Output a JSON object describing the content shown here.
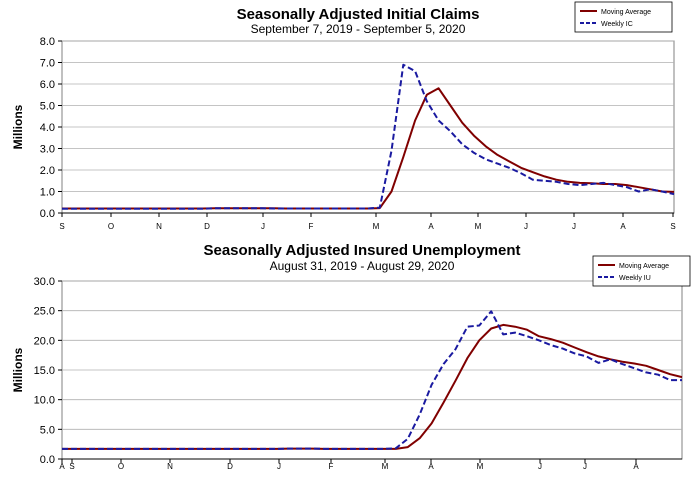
{
  "chart_data": [
    {
      "type": "line",
      "title": "Seasonally Adjusted Initial Claims",
      "subtitle": "September 7, 2019 - September 5, 2020",
      "ylabel": "Millions",
      "xlabel": "",
      "ylim": [
        0,
        8
      ],
      "y_ticks": [
        "0.0",
        "1.0",
        "2.0",
        "3.0",
        "4.0",
        "5.0",
        "6.0",
        "7.0",
        "8.0"
      ],
      "x_tick_labels": [
        "S",
        "O",
        "N",
        "D",
        "J",
        "F",
        "M",
        "A",
        "M",
        "J",
        "J",
        "A",
        "S"
      ],
      "grid": true,
      "legend": "top-right",
      "x": [
        "2019-09-07",
        "2019-09-14",
        "2019-09-21",
        "2019-09-28",
        "2019-10-05",
        "2019-10-12",
        "2019-10-19",
        "2019-10-26",
        "2019-11-02",
        "2019-11-09",
        "2019-11-16",
        "2019-11-23",
        "2019-11-30",
        "2019-12-07",
        "2019-12-14",
        "2019-12-21",
        "2019-12-28",
        "2020-01-04",
        "2020-01-11",
        "2020-01-18",
        "2020-01-25",
        "2020-02-01",
        "2020-02-08",
        "2020-02-15",
        "2020-02-22",
        "2020-02-29",
        "2020-03-07",
        "2020-03-14",
        "2020-03-21",
        "2020-03-28",
        "2020-04-04",
        "2020-04-11",
        "2020-04-18",
        "2020-04-25",
        "2020-05-02",
        "2020-05-09",
        "2020-05-16",
        "2020-05-23",
        "2020-05-30",
        "2020-06-06",
        "2020-06-13",
        "2020-06-20",
        "2020-06-27",
        "2020-07-04",
        "2020-07-11",
        "2020-07-18",
        "2020-07-25",
        "2020-08-01",
        "2020-08-08",
        "2020-08-15",
        "2020-08-22",
        "2020-08-29",
        "2020-09-05"
      ],
      "series": [
        {
          "name": "Moving Average",
          "color": "#800000",
          "style": "solid",
          "values": [
            0.21,
            0.21,
            0.21,
            0.21,
            0.21,
            0.21,
            0.21,
            0.21,
            0.21,
            0.21,
            0.21,
            0.21,
            0.21,
            0.22,
            0.22,
            0.22,
            0.22,
            0.22,
            0.22,
            0.21,
            0.21,
            0.21,
            0.21,
            0.21,
            0.21,
            0.21,
            0.21,
            0.23,
            1.0,
            2.6,
            4.3,
            5.5,
            5.8,
            5.0,
            4.2,
            3.6,
            3.1,
            2.7,
            2.4,
            2.1,
            1.9,
            1.7,
            1.55,
            1.45,
            1.4,
            1.38,
            1.35,
            1.35,
            1.3,
            1.2,
            1.1,
            1.0,
            0.98
          ]
        },
        {
          "name": "Weekly IC",
          "color": "#1a1aa0",
          "style": "dashed",
          "values": [
            0.2,
            0.2,
            0.2,
            0.2,
            0.2,
            0.2,
            0.2,
            0.2,
            0.2,
            0.2,
            0.2,
            0.2,
            0.2,
            0.22,
            0.22,
            0.22,
            0.22,
            0.22,
            0.21,
            0.21,
            0.21,
            0.21,
            0.21,
            0.21,
            0.21,
            0.21,
            0.21,
            0.25,
            2.9,
            6.9,
            6.6,
            5.2,
            4.3,
            3.8,
            3.2,
            2.8,
            2.5,
            2.3,
            2.1,
            1.85,
            1.55,
            1.5,
            1.45,
            1.35,
            1.3,
            1.35,
            1.4,
            1.3,
            1.2,
            1.0,
            1.1,
            1.0,
            0.88
          ]
        }
      ]
    },
    {
      "type": "line",
      "title": "Seasonally Adjusted Insured Unemployment",
      "subtitle": "August 31, 2019 - August 29, 2020",
      "ylabel": "Millions",
      "xlabel": "",
      "ylim": [
        0,
        30
      ],
      "y_ticks": [
        "0.0",
        "5.0",
        "10.0",
        "15.0",
        "20.0",
        "25.0",
        "30.0"
      ],
      "x_tick_labels": [
        "A",
        "S",
        "O",
        "N",
        "D",
        "J",
        "F",
        "M",
        "A",
        "M",
        "J",
        "J",
        "A"
      ],
      "grid": true,
      "legend": "top-right",
      "x": [
        "2019-08-31",
        "2019-09-07",
        "2019-09-14",
        "2019-09-21",
        "2019-09-28",
        "2019-10-05",
        "2019-10-12",
        "2019-10-19",
        "2019-10-26",
        "2019-11-02",
        "2019-11-09",
        "2019-11-16",
        "2019-11-23",
        "2019-11-30",
        "2019-12-07",
        "2019-12-14",
        "2019-12-21",
        "2019-12-28",
        "2020-01-04",
        "2020-01-11",
        "2020-01-18",
        "2020-01-25",
        "2020-02-01",
        "2020-02-08",
        "2020-02-15",
        "2020-02-22",
        "2020-02-29",
        "2020-03-07",
        "2020-03-14",
        "2020-03-21",
        "2020-03-28",
        "2020-04-04",
        "2020-04-11",
        "2020-04-18",
        "2020-04-25",
        "2020-05-02",
        "2020-05-09",
        "2020-05-16",
        "2020-05-23",
        "2020-05-30",
        "2020-06-06",
        "2020-06-13",
        "2020-06-20",
        "2020-06-27",
        "2020-07-04",
        "2020-07-11",
        "2020-07-18",
        "2020-07-25",
        "2020-08-01",
        "2020-08-08",
        "2020-08-15",
        "2020-08-22",
        "2020-08-29"
      ],
      "series": [
        {
          "name": "Moving Average",
          "color": "#800000",
          "style": "solid",
          "values": [
            1.7,
            1.7,
            1.7,
            1.7,
            1.7,
            1.7,
            1.7,
            1.7,
            1.7,
            1.7,
            1.7,
            1.7,
            1.7,
            1.7,
            1.7,
            1.7,
            1.7,
            1.7,
            1.7,
            1.75,
            1.75,
            1.75,
            1.7,
            1.7,
            1.7,
            1.7,
            1.7,
            1.7,
            1.7,
            2.0,
            3.5,
            6.0,
            9.5,
            13.2,
            17.0,
            20.0,
            22.0,
            22.6,
            22.3,
            21.8,
            20.7,
            20.2,
            19.6,
            18.8,
            18.0,
            17.3,
            16.8,
            16.4,
            16.1,
            15.7,
            15.0,
            14.3,
            13.8
          ]
        },
        {
          "name": "Weekly IU",
          "color": "#1a1aa0",
          "style": "dashed",
          "values": [
            1.7,
            1.7,
            1.7,
            1.7,
            1.7,
            1.7,
            1.7,
            1.7,
            1.7,
            1.7,
            1.7,
            1.7,
            1.7,
            1.7,
            1.7,
            1.7,
            1.7,
            1.7,
            1.7,
            1.75,
            1.75,
            1.75,
            1.7,
            1.7,
            1.7,
            1.7,
            1.7,
            1.7,
            1.8,
            3.4,
            7.5,
            12.5,
            16.0,
            18.5,
            22.3,
            22.5,
            24.9,
            21.0,
            21.3,
            20.7,
            20.0,
            19.2,
            18.6,
            17.8,
            17.3,
            16.2,
            16.8,
            16.0,
            15.3,
            14.6,
            14.2,
            13.3,
            13.3
          ]
        }
      ]
    }
  ]
}
